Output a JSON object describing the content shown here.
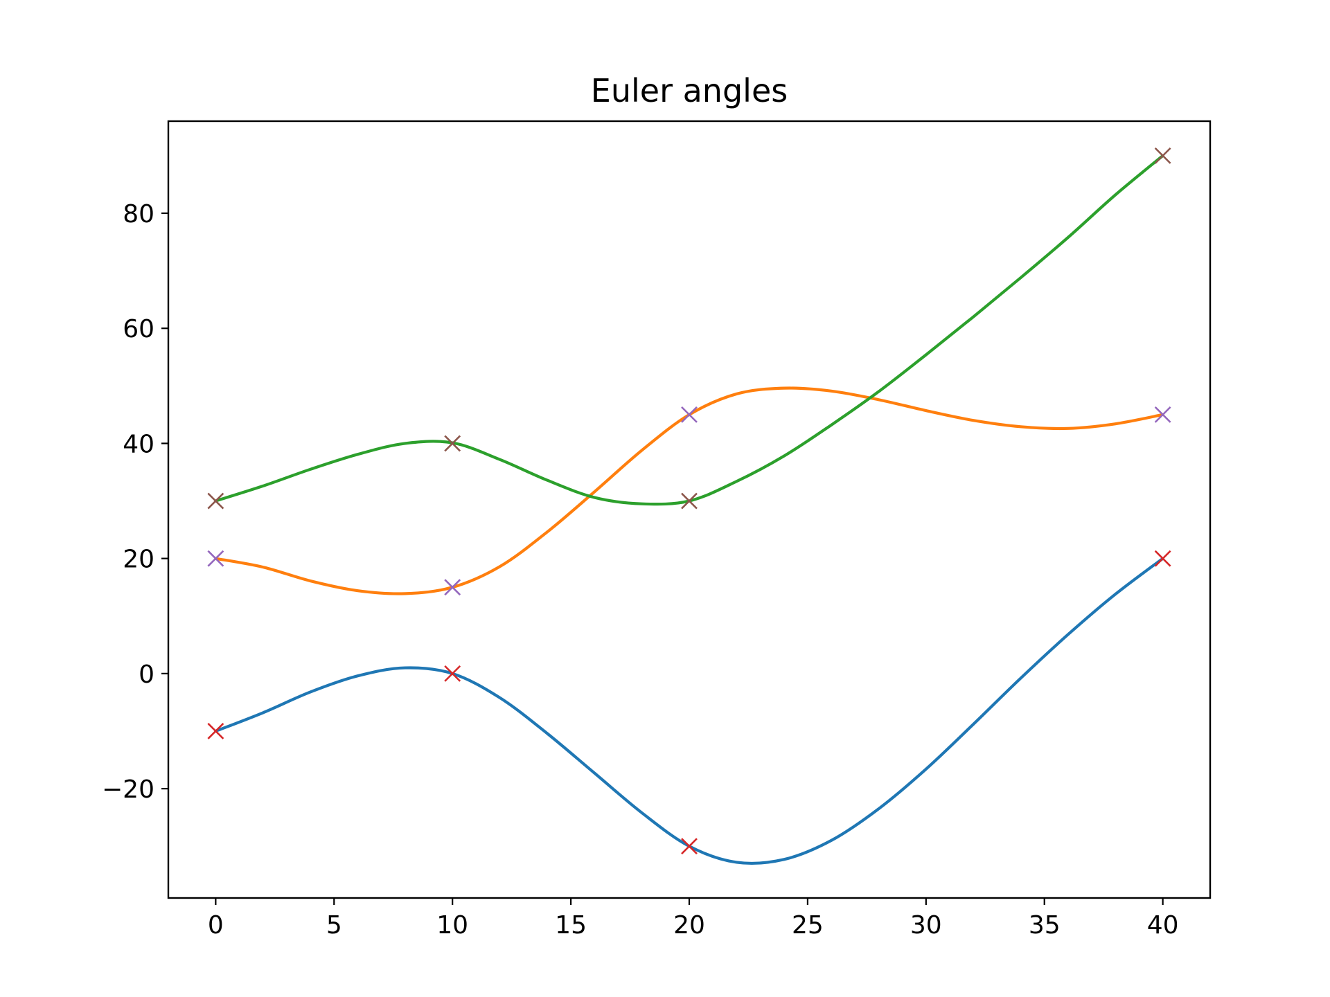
{
  "chart_data": {
    "type": "line",
    "title": "Euler angles",
    "xlabel": "",
    "ylabel": "",
    "xlim": [
      -2,
      42
    ],
    "ylim": [
      -39,
      96
    ],
    "xticks": [
      0,
      5,
      10,
      15,
      20,
      25,
      30,
      35,
      40
    ],
    "yticks": [
      -20,
      0,
      20,
      40,
      60,
      80
    ],
    "grid": false,
    "legend": false,
    "series": [
      {
        "color": "#1f77b4",
        "marker_color": "#d62728",
        "points_x": [
          0,
          10,
          20,
          40
        ],
        "points_y": [
          -10,
          0,
          -30,
          20
        ],
        "curve_x": [
          0,
          2,
          4,
          6,
          8,
          10,
          12,
          14,
          16,
          18,
          20,
          22,
          24,
          26,
          28,
          30,
          32,
          34,
          36,
          38,
          40
        ],
        "curve_y": [
          -10,
          -6.8,
          -3.2,
          -0.4,
          1.0,
          0.0,
          -4.2,
          -10.4,
          -17.3,
          -24.2,
          -30.0,
          -32.8,
          -32.3,
          -29.0,
          -23.5,
          -16.6,
          -8.8,
          -0.8,
          6.8,
          13.8,
          20.0
        ]
      },
      {
        "color": "#ff7f0e",
        "marker_color": "#9467bd",
        "points_x": [
          0,
          10,
          20,
          40
        ],
        "points_y": [
          20,
          15,
          45,
          45
        ],
        "curve_x": [
          0,
          2,
          4,
          6,
          8,
          10,
          12,
          14,
          16,
          18,
          20,
          22,
          24,
          26,
          28,
          30,
          32,
          34,
          36,
          38,
          40
        ],
        "curve_y": [
          20,
          18.5,
          16.1,
          14.4,
          13.9,
          15.0,
          18.6,
          24.6,
          31.6,
          38.8,
          45.0,
          48.6,
          49.6,
          49.1,
          47.6,
          45.7,
          44.0,
          42.9,
          42.6,
          43.4,
          45.0
        ]
      },
      {
        "color": "#2ca02c",
        "marker_color": "#8c564b",
        "points_x": [
          0,
          10,
          20,
          40
        ],
        "points_y": [
          30,
          40,
          30,
          90
        ],
        "curve_x": [
          0,
          2,
          4,
          6,
          8,
          10,
          12,
          14,
          16,
          18,
          20,
          22,
          24,
          26,
          28,
          30,
          32,
          34,
          36,
          38,
          40
        ],
        "curve_y": [
          30,
          32.6,
          35.5,
          38.1,
          40.0,
          40.1,
          37.2,
          33.6,
          30.6,
          29.5,
          30.0,
          33.4,
          37.8,
          43.2,
          49.0,
          55.4,
          62.0,
          68.8,
          75.8,
          83.2,
          90.0
        ]
      }
    ]
  }
}
